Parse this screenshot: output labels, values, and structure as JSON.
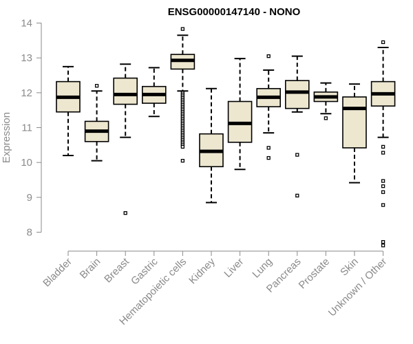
{
  "chart_data": {
    "type": "box",
    "title": "ENSG00000147140 - NONO",
    "ylabel": "Expression",
    "xlabel": "",
    "ylim": [
      7.5,
      14.2
    ],
    "yticks": [
      8,
      9,
      10,
      11,
      12,
      13,
      14
    ],
    "grid": false,
    "colors": {
      "box_fill": "#ede7d0",
      "box_stroke": "#000000",
      "median": "#000000",
      "axis": "#8a8a8a"
    },
    "categories": [
      "Bladder",
      "Brain",
      "Breast",
      "Gastric",
      "Hematopoietic cells",
      "Kidney",
      "Liver",
      "Lung",
      "Pancreas",
      "Prostate",
      "Skin",
      "Unknown / Other"
    ],
    "boxes": [
      {
        "whisker_low": 10.2,
        "q1": 11.45,
        "median": 11.87,
        "q3": 12.32,
        "whisker_high": 12.75,
        "outliers": []
      },
      {
        "whisker_low": 10.05,
        "q1": 10.6,
        "median": 10.9,
        "q3": 11.18,
        "whisker_high": 12.05,
        "outliers": [
          12.2
        ]
      },
      {
        "whisker_low": 10.72,
        "q1": 11.67,
        "median": 11.95,
        "q3": 12.42,
        "whisker_high": 12.82,
        "outliers": [
          8.55
        ]
      },
      {
        "whisker_low": 11.32,
        "q1": 11.7,
        "median": 11.95,
        "q3": 12.18,
        "whisker_high": 12.72,
        "outliers": []
      },
      {
        "whisker_low": 12.05,
        "q1": 12.68,
        "median": 12.93,
        "q3": 13.1,
        "whisker_high": 13.65,
        "outliers": [
          13.83,
          12.0,
          11.95,
          11.9,
          11.85,
          11.8,
          11.75,
          11.7,
          11.65,
          11.6,
          11.55,
          11.5,
          11.45,
          11.4,
          11.35,
          11.3,
          11.25,
          11.2,
          11.15,
          11.1,
          11.05,
          11.0,
          10.95,
          10.9,
          10.85,
          10.8,
          10.75,
          10.7,
          10.65,
          10.6,
          10.55,
          10.5,
          10.45,
          10.05
        ]
      },
      {
        "whisker_low": 8.85,
        "q1": 9.88,
        "median": 10.32,
        "q3": 10.82,
        "whisker_high": 12.12,
        "outliers": []
      },
      {
        "whisker_low": 9.8,
        "q1": 10.58,
        "median": 11.12,
        "q3": 11.75,
        "whisker_high": 12.98,
        "outliers": []
      },
      {
        "whisker_low": 10.85,
        "q1": 11.6,
        "median": 11.87,
        "q3": 12.12,
        "whisker_high": 12.65,
        "outliers": [
          13.05,
          10.42,
          10.13
        ]
      },
      {
        "whisker_low": 11.45,
        "q1": 11.55,
        "median": 12.02,
        "q3": 12.35,
        "whisker_high": 13.05,
        "outliers": [
          10.22,
          9.05
        ]
      },
      {
        "whisker_low": 11.4,
        "q1": 11.75,
        "median": 11.88,
        "q3": 12.02,
        "whisker_high": 12.28,
        "outliers": [
          11.27
        ]
      },
      {
        "whisker_low": 9.42,
        "q1": 10.42,
        "median": 11.55,
        "q3": 11.88,
        "whisker_high": 12.25,
        "outliers": []
      },
      {
        "whisker_low": 10.72,
        "q1": 11.62,
        "median": 11.97,
        "q3": 12.32,
        "whisker_high": 13.3,
        "outliers": [
          13.45,
          10.45,
          10.28,
          9.47,
          9.32,
          9.15,
          8.78,
          7.72,
          7.62
        ]
      }
    ]
  }
}
